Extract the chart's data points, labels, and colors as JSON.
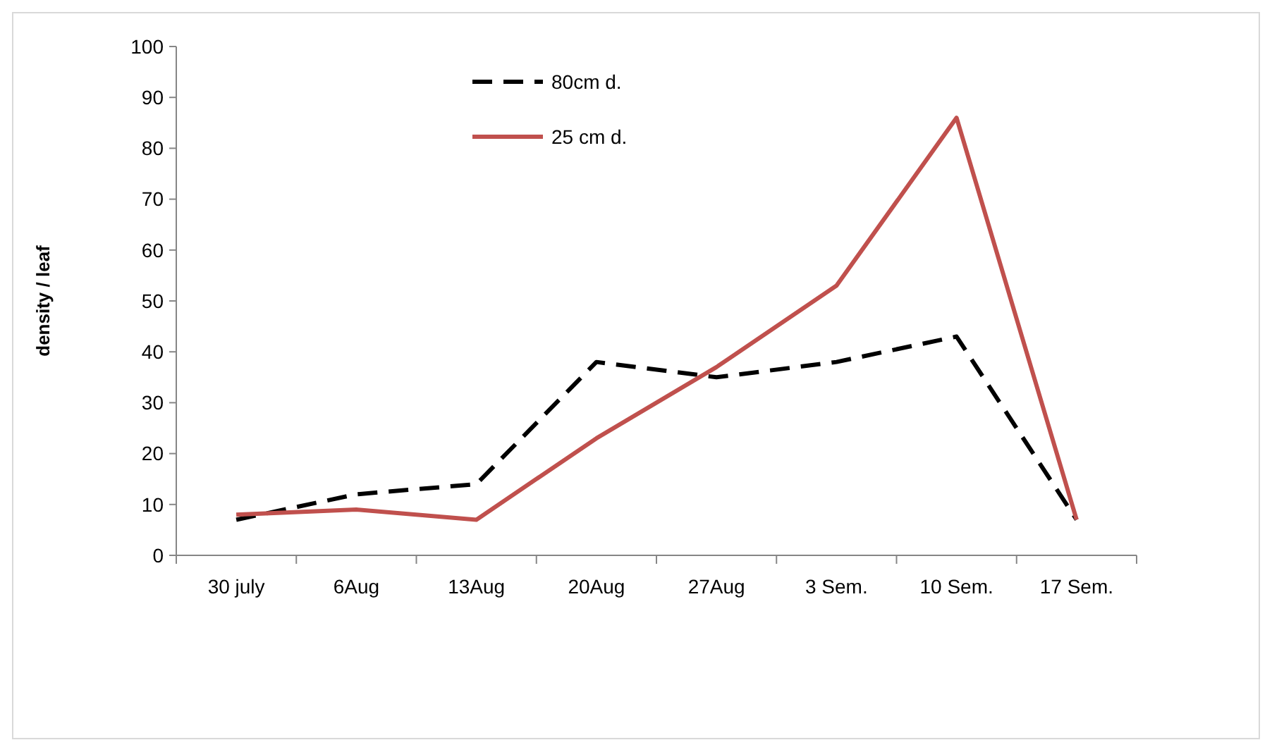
{
  "chart_data": {
    "type": "line",
    "ylabel": "density / leaf",
    "categories": [
      "30 july",
      "6Aug",
      "13Aug",
      "20Aug",
      "27Aug",
      "3 Sem.",
      "10 Sem.",
      "17 Sem."
    ],
    "series": [
      {
        "name": "80cm d.",
        "color": "#000000",
        "line_style": "dashed",
        "values": [
          7,
          12,
          14,
          38,
          35,
          38,
          43,
          7
        ]
      },
      {
        "name": "25 cm d.",
        "color": "#c0504d",
        "line_style": "solid",
        "values": [
          8,
          9,
          7,
          23,
          37,
          53,
          86,
          7
        ]
      }
    ],
    "ylim": [
      0,
      100
    ],
    "yticks": [
      0,
      10,
      20,
      30,
      40,
      50,
      60,
      70,
      80,
      90,
      100
    ],
    "grid": false,
    "legend": "top",
    "marker": "none"
  }
}
